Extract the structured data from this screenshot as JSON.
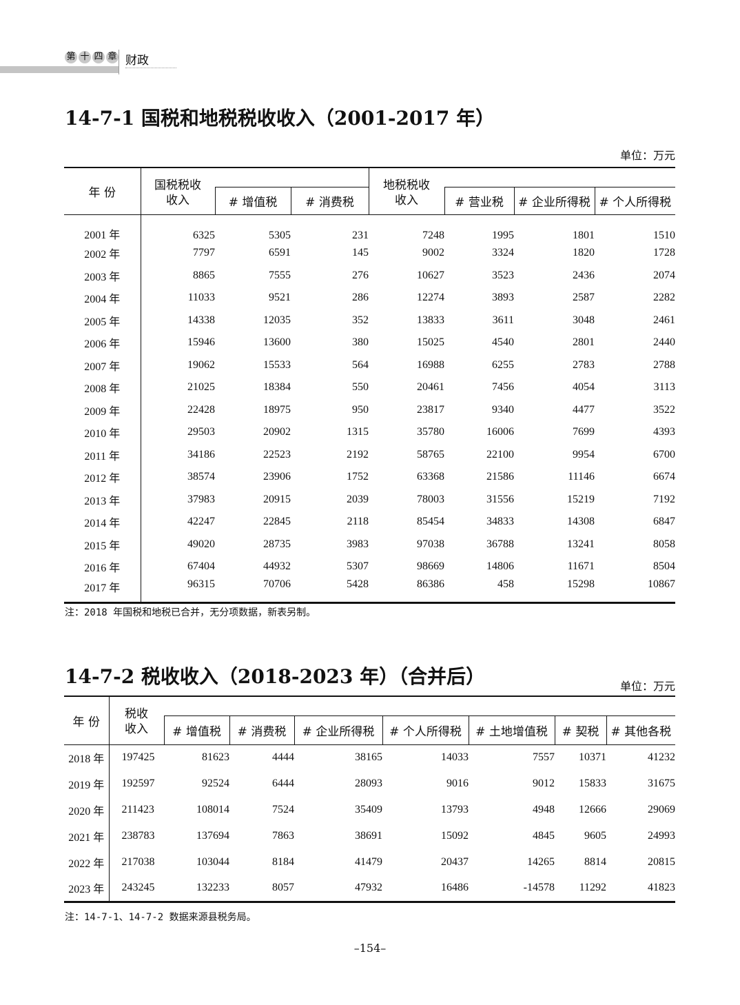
{
  "header": {
    "chapter_chars": [
      "第",
      "十",
      "四",
      "章"
    ],
    "section": "财政"
  },
  "table1": {
    "title": "14-7-1  国税和地税税收收入（2001-2017 年）",
    "unit": "单位：万元",
    "year_header": "年 份",
    "group1": "国税税收\n收入",
    "group2": "地税税收\n收入",
    "sub1": [
      "# 增值税",
      "# 消费税"
    ],
    "sub2": [
      "# 营业税",
      "# 企业所得税",
      "# 个人所得税"
    ],
    "rows": [
      [
        "2001 年",
        "6325",
        "5305",
        "231",
        "7248",
        "1995",
        "1801",
        "1510"
      ],
      [
        "2002 年",
        "7797",
        "6591",
        "145",
        "9002",
        "3324",
        "1820",
        "1728"
      ],
      [
        "2003 年",
        "8865",
        "7555",
        "276",
        "10627",
        "3523",
        "2436",
        "2074"
      ],
      [
        "2004 年",
        "11033",
        "9521",
        "286",
        "12274",
        "3893",
        "2587",
        "2282"
      ],
      [
        "2005 年",
        "14338",
        "12035",
        "352",
        "13833",
        "3611",
        "3048",
        "2461"
      ],
      [
        "2006 年",
        "15946",
        "13600",
        "380",
        "15025",
        "4540",
        "2801",
        "2440"
      ],
      [
        "2007 年",
        "19062",
        "15533",
        "564",
        "16988",
        "6255",
        "2783",
        "2788"
      ],
      [
        "2008 年",
        "21025",
        "18384",
        "550",
        "20461",
        "7456",
        "4054",
        "3113"
      ],
      [
        "2009 年",
        "22428",
        "18975",
        "950",
        "23817",
        "9340",
        "4477",
        "3522"
      ],
      [
        "2010 年",
        "29503",
        "20902",
        "1315",
        "35780",
        "16006",
        "7699",
        "4393"
      ],
      [
        "2011 年",
        "34186",
        "22523",
        "2192",
        "58765",
        "22100",
        "9954",
        "6700"
      ],
      [
        "2012 年",
        "38574",
        "23906",
        "1752",
        "63368",
        "21586",
        "11146",
        "6674"
      ],
      [
        "2013 年",
        "37983",
        "20915",
        "2039",
        "78003",
        "31556",
        "15219",
        "7192"
      ],
      [
        "2014 年",
        "42247",
        "22845",
        "2118",
        "85454",
        "34833",
        "14308",
        "6847"
      ],
      [
        "2015 年",
        "49020",
        "28735",
        "3983",
        "97038",
        "36788",
        "13241",
        "8058"
      ],
      [
        "2016 年",
        "67404",
        "44932",
        "5307",
        "98669",
        "14806",
        "11671",
        "8504"
      ],
      [
        "2017 年",
        "96315",
        "70706",
        "5428",
        "86386",
        "458",
        "15298",
        "10867"
      ]
    ],
    "note": "注：2018 年国税和地税已合并，无分项数据，新表另制。"
  },
  "table2": {
    "title": "14-7-2  税收收入（2018-2023 年）（合并后）",
    "unit": "单位：万元",
    "year_header": "年 份",
    "group": "税收\n收入",
    "sub": [
      "# 增值税",
      "# 消费税",
      "# 企业所得税",
      "# 个人所得税",
      "# 土地增值税",
      "# 契税",
      "# 其他各税"
    ],
    "rows": [
      [
        "2018 年",
        "197425",
        "81623",
        "4444",
        "38165",
        "14033",
        "7557",
        "10371",
        "41232"
      ],
      [
        "2019 年",
        "192597",
        "92524",
        "6444",
        "28093",
        "9016",
        "9012",
        "15833",
        "31675"
      ],
      [
        "2020 年",
        "211423",
        "108014",
        "7524",
        "35409",
        "13793",
        "4948",
        "12666",
        "29069"
      ],
      [
        "2021 年",
        "238783",
        "137694",
        "7863",
        "38691",
        "15092",
        "4845",
        "9605",
        "24993"
      ],
      [
        "2022 年",
        "217038",
        "103044",
        "8184",
        "41479",
        "20437",
        "14265",
        "8814",
        "20815"
      ],
      [
        "2023 年",
        "243245",
        "132233",
        "8057",
        "47932",
        "16486",
        "-14578",
        "11292",
        "41823"
      ]
    ],
    "note": "注：14-7-1、14-7-2 数据来源县税务局。"
  },
  "page_number": "–154–"
}
